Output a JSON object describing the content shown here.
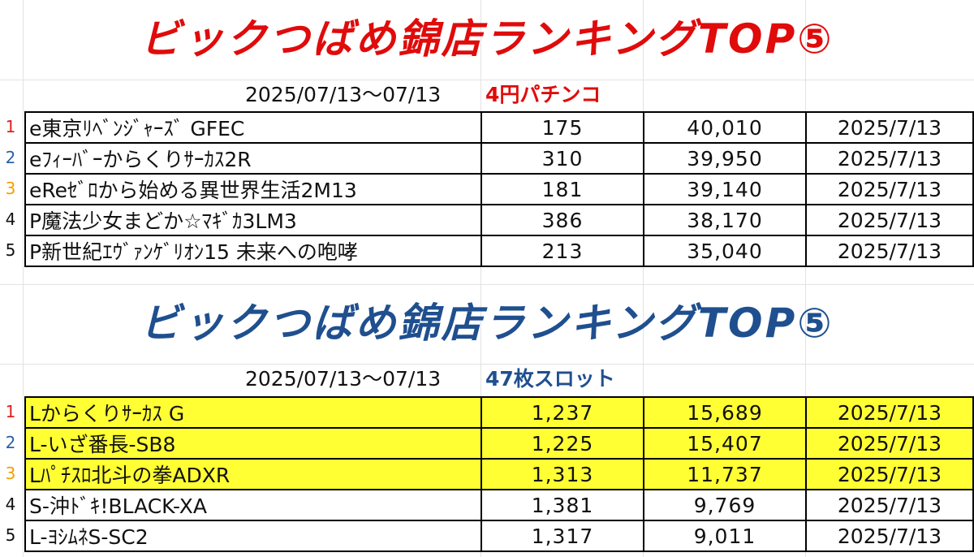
{
  "colors": {
    "title_red": "#e00b0b",
    "title_blue": "#1f4f8f",
    "category_red": "#e00b0b",
    "category_blue": "#1f4f8f",
    "highlight": "#ffff33",
    "rank_1": "#e02020",
    "rank_2": "#2a5fa8",
    "rank_3": "#f0a000",
    "rank_4": "#111111",
    "rank_5": "#111111"
  },
  "pachinko": {
    "title": "ビックつばめ錦店ランキングTOP⑤",
    "period": "2025/07/13～07/13",
    "category": "4円パチンコ",
    "rows": [
      {
        "rank": "1",
        "machine": "e東京ﾘﾍﾞﾝｼﾞｬｰｽﾞ GFEC",
        "units": "175",
        "value": "40,010",
        "date": "2025/7/13"
      },
      {
        "rank": "2",
        "machine": "eﾌｨｰﾊﾞｰからくりｻｰｶｽ2R",
        "units": "310",
        "value": "39,950",
        "date": "2025/7/13"
      },
      {
        "rank": "3",
        "machine": "eReｾﾞﾛから始める異世界生活2M13",
        "units": "181",
        "value": "39,140",
        "date": "2025/7/13"
      },
      {
        "rank": "4",
        "machine": "P魔法少女まどか☆ﾏｷﾞｶ3LM3",
        "units": "386",
        "value": "38,170",
        "date": "2025/7/13"
      },
      {
        "rank": "5",
        "machine": "P新世紀ｴｳﾞｧﾝｹﾞﾘｵﾝ15 未来への咆哮",
        "units": "213",
        "value": "35,040",
        "date": "2025/7/13"
      }
    ]
  },
  "slot": {
    "title": "ビックつばめ錦店ランキングTOP⑤",
    "period": "2025/07/13～07/13",
    "category": "47枚スロット",
    "rows": [
      {
        "rank": "1",
        "machine": "Lからくりｻｰｶｽ G",
        "units": "1,237",
        "value": "15,689",
        "date": "2025/7/13",
        "highlighted": true
      },
      {
        "rank": "2",
        "machine": "L-いざ番長-SB8",
        "units": "1,225",
        "value": "15,407",
        "date": "2025/7/13",
        "highlighted": true
      },
      {
        "rank": "3",
        "machine": "Lﾊﾟﾁｽﾛ北斗の拳ADXR",
        "units": "1,313",
        "value": "11,737",
        "date": "2025/7/13",
        "highlighted": true
      },
      {
        "rank": "4",
        "machine": "S-沖ﾄﾞｷ!BLACK-XA",
        "units": "1,381",
        "value": "9,769",
        "date": "2025/7/13",
        "highlighted": false
      },
      {
        "rank": "5",
        "machine": "L-ﾖｼﾑﾈS-SC2",
        "units": "1,317",
        "value": "9,011",
        "date": "2025/7/13",
        "highlighted": false
      }
    ]
  }
}
